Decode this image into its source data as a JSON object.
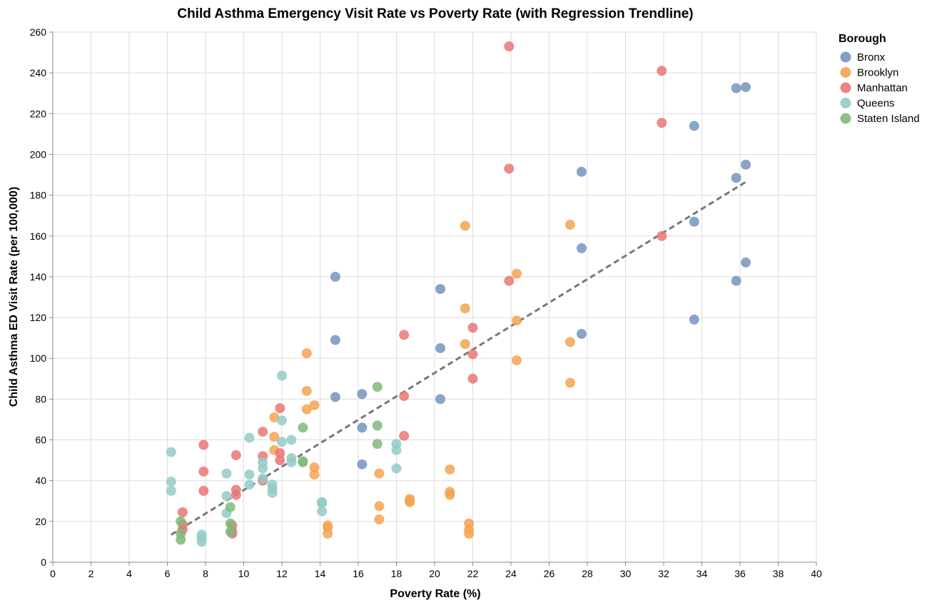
{
  "chart_data": {
    "type": "scatter",
    "title": "Child Asthma Emergency Visit Rate vs Poverty Rate (with Regression Trendline)",
    "xlabel": "Poverty Rate (%)",
    "ylabel": "Child Asthma ED Visit Rate (per 100,000)",
    "xlim": [
      0,
      40
    ],
    "ylim": [
      0,
      260
    ],
    "x_ticks": [
      "0",
      "2",
      "4",
      "6",
      "8",
      "10",
      "12",
      "14",
      "16",
      "18",
      "20",
      "22",
      "24",
      "26",
      "28",
      "30",
      "32",
      "34",
      "36",
      "38",
      "40"
    ],
    "y_ticks": [
      "0",
      "20",
      "40",
      "60",
      "80",
      "100",
      "120",
      "140",
      "160",
      "180",
      "200",
      "220",
      "240",
      "260"
    ],
    "grid": true,
    "legend_position": "right",
    "legend_title": "Borough",
    "trendline": {
      "style": "dashed",
      "color": "#777777",
      "x": [
        6.2,
        36.3
      ],
      "y": [
        13.5,
        186.5
      ]
    },
    "series": [
      {
        "name": "Bronx",
        "color": "#7594bd",
        "points": [
          [
            14.8,
            140
          ],
          [
            14.8,
            109
          ],
          [
            14.8,
            81
          ],
          [
            16.2,
            82.5
          ],
          [
            16.2,
            66
          ],
          [
            16.2,
            48
          ],
          [
            20.3,
            134
          ],
          [
            20.3,
            105
          ],
          [
            20.3,
            80
          ],
          [
            27.7,
            191.5
          ],
          [
            27.7,
            154
          ],
          [
            27.7,
            112
          ],
          [
            33.6,
            214
          ],
          [
            33.6,
            167
          ],
          [
            33.6,
            119
          ],
          [
            35.8,
            232.5
          ],
          [
            35.8,
            188.5
          ],
          [
            35.8,
            138
          ],
          [
            36.3,
            233
          ],
          [
            36.3,
            195
          ],
          [
            36.3,
            147
          ]
        ]
      },
      {
        "name": "Brooklyn",
        "color": "#f5a351",
        "points": [
          [
            11.6,
            71
          ],
          [
            11.6,
            61.5
          ],
          [
            11.6,
            55
          ],
          [
            13.3,
            102.5
          ],
          [
            13.3,
            84
          ],
          [
            13.3,
            75
          ],
          [
            13.7,
            77
          ],
          [
            13.7,
            46.5
          ],
          [
            13.7,
            43
          ],
          [
            14.4,
            18
          ],
          [
            14.4,
            17
          ],
          [
            14.4,
            14
          ],
          [
            17.1,
            43.5
          ],
          [
            17.1,
            27.5
          ],
          [
            17.1,
            21
          ],
          [
            18.7,
            31
          ],
          [
            18.7,
            30
          ],
          [
            18.7,
            29.5
          ],
          [
            20.8,
            45.5
          ],
          [
            20.8,
            34.5
          ],
          [
            20.8,
            33
          ],
          [
            21.6,
            165
          ],
          [
            21.6,
            124.5
          ],
          [
            21.6,
            107
          ],
          [
            21.8,
            19
          ],
          [
            21.8,
            16
          ],
          [
            21.8,
            14
          ],
          [
            24.3,
            141.5
          ],
          [
            24.3,
            118.5
          ],
          [
            24.3,
            99
          ],
          [
            27.1,
            165.5
          ],
          [
            27.1,
            108
          ],
          [
            27.1,
            88
          ]
        ]
      },
      {
        "name": "Manhattan",
        "color": "#e97776",
        "points": [
          [
            6.8,
            24.5
          ],
          [
            6.8,
            18.5
          ],
          [
            6.8,
            16
          ],
          [
            7.9,
            57.5
          ],
          [
            7.9,
            44.5
          ],
          [
            7.9,
            35
          ],
          [
            9.4,
            18
          ],
          [
            9.4,
            15
          ],
          [
            9.4,
            14
          ],
          [
            9.6,
            52.5
          ],
          [
            9.6,
            35.5
          ],
          [
            9.6,
            33
          ],
          [
            11.0,
            64
          ],
          [
            11.0,
            52
          ],
          [
            11.0,
            40
          ],
          [
            11.9,
            75.5
          ],
          [
            11.9,
            53.5
          ],
          [
            11.9,
            50
          ],
          [
            18.4,
            111.5
          ],
          [
            18.4,
            81.5
          ],
          [
            18.4,
            62
          ],
          [
            22.0,
            115
          ],
          [
            22.0,
            102
          ],
          [
            22.0,
            90
          ],
          [
            23.9,
            253
          ],
          [
            23.9,
            193
          ],
          [
            23.9,
            138
          ],
          [
            31.9,
            241
          ],
          [
            31.9,
            215.5
          ],
          [
            31.9,
            160
          ]
        ]
      },
      {
        "name": "Queens",
        "color": "#93cbc6",
        "points": [
          [
            6.2,
            54
          ],
          [
            6.2,
            39.5
          ],
          [
            6.2,
            35
          ],
          [
            7.8,
            13.5
          ],
          [
            7.8,
            12
          ],
          [
            7.8,
            10
          ],
          [
            9.1,
            43.5
          ],
          [
            9.1,
            32.5
          ],
          [
            9.1,
            24
          ],
          [
            10.3,
            61
          ],
          [
            10.3,
            43
          ],
          [
            10.3,
            38
          ],
          [
            11.0,
            49
          ],
          [
            11.0,
            46
          ],
          [
            11.0,
            41
          ],
          [
            11.5,
            38
          ],
          [
            11.5,
            36
          ],
          [
            11.5,
            34
          ],
          [
            12.0,
            91.5
          ],
          [
            12.0,
            69.5
          ],
          [
            12.0,
            59
          ],
          [
            12.5,
            60
          ],
          [
            12.5,
            51
          ],
          [
            12.5,
            49
          ],
          [
            14.1,
            29.5
          ],
          [
            14.1,
            29
          ],
          [
            14.1,
            25
          ],
          [
            18.0,
            58
          ],
          [
            18.0,
            55
          ],
          [
            18.0,
            46
          ]
        ]
      },
      {
        "name": "Staten Island",
        "color": "#80b97a",
        "points": [
          [
            6.7,
            20
          ],
          [
            6.7,
            14
          ],
          [
            6.7,
            11
          ],
          [
            9.3,
            27
          ],
          [
            9.3,
            19
          ],
          [
            9.3,
            15
          ],
          [
            13.1,
            66
          ],
          [
            13.1,
            49.5
          ],
          [
            13.1,
            49
          ],
          [
            17.0,
            86
          ],
          [
            17.0,
            67
          ],
          [
            17.0,
            58
          ]
        ]
      }
    ]
  }
}
